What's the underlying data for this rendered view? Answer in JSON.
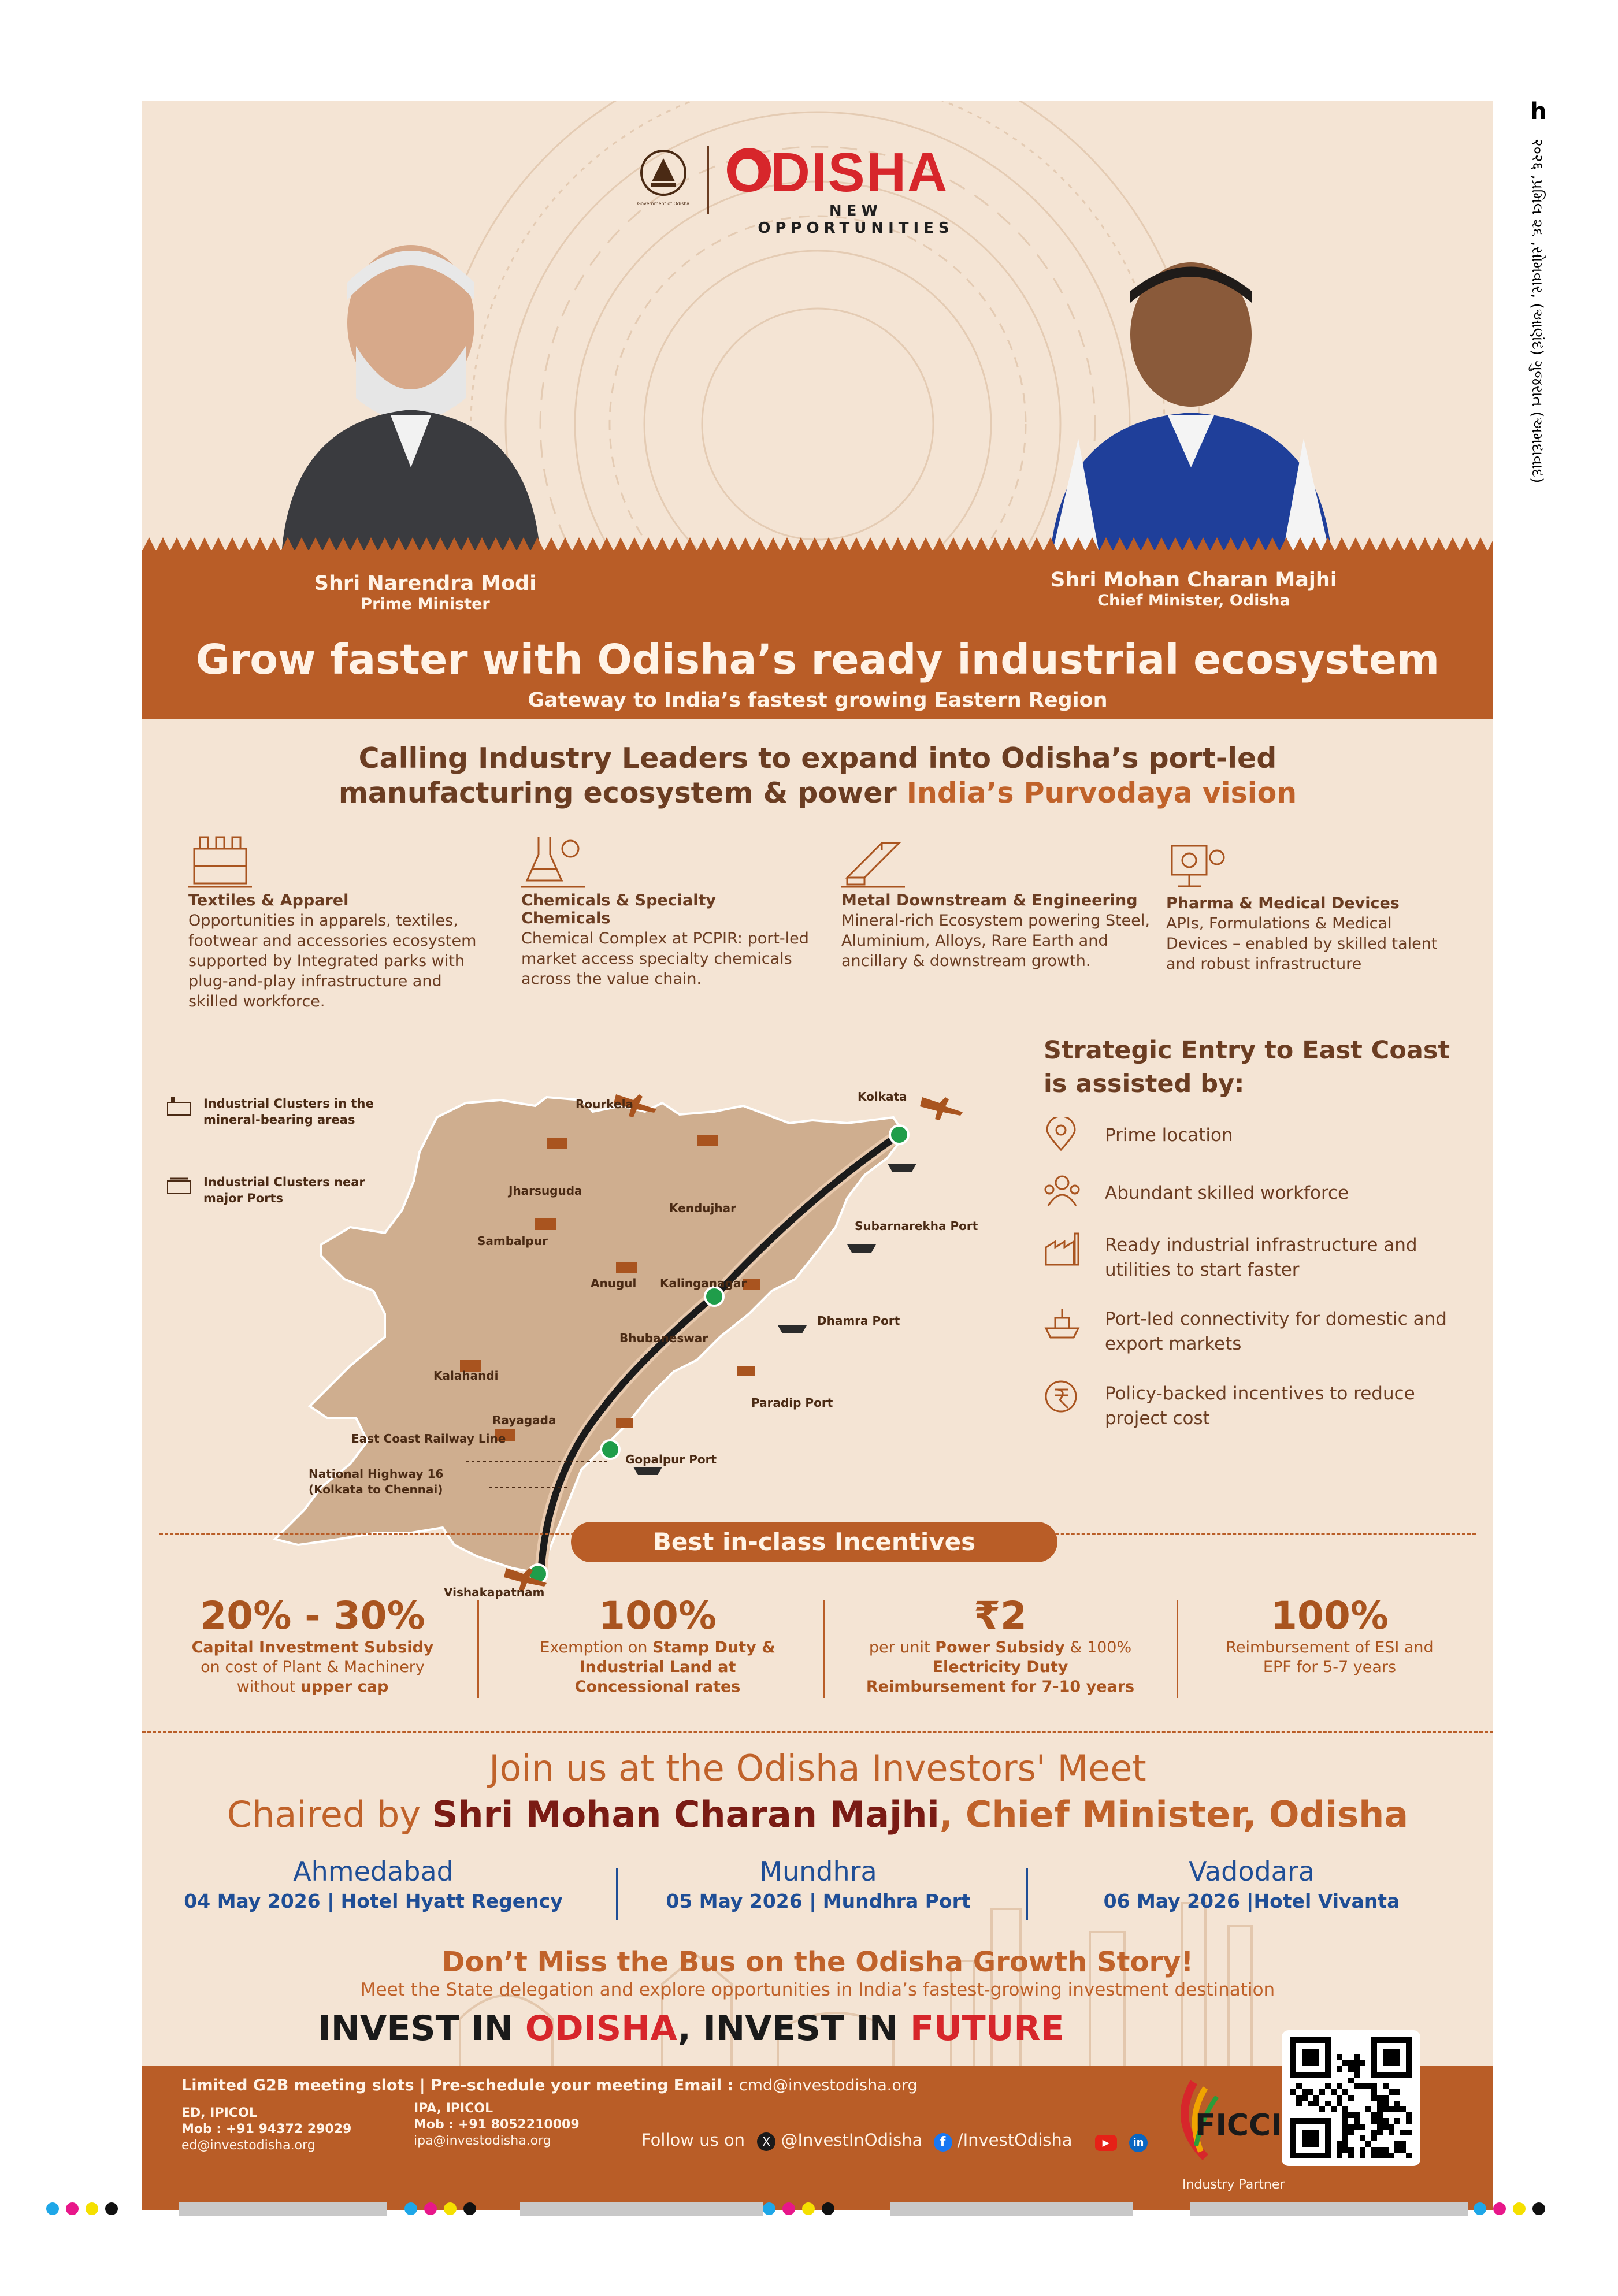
{
  "side_strip": "२०२६ ,પ્રમિલ ૨૬ ,સોમવાર, (આણંદ) ગુજરાત (અમદાવાદ)",
  "side_page": "h",
  "header": {
    "emblem_caption": "Government of Odisha",
    "brand": "ODISHA",
    "brand_tagline": "NEW OPPORTUNITIES"
  },
  "leaders": [
    {
      "name": "Shri Narendra Modi",
      "title": "Prime Minister"
    },
    {
      "name": "Shri Mohan Charan Majhi",
      "title": "Chief Minister, Odisha"
    }
  ],
  "headline": "Grow faster with Odisha’s ready industrial ecosystem",
  "subheadline": "Gateway to India’s fastest growing Eastern Region",
  "call_line1": "Calling Industry Leaders to expand into Odisha’s port-led",
  "call_line2": "manufacturing ecosystem & power ",
  "call_highlight": "India’s Purvodaya vision",
  "sectors": [
    {
      "icon": "textile-factory-icon",
      "title": "Textiles & Apparel",
      "text": "Opportunities in apparels, textiles, footwear and accessories ecosystem supported by Integrated  parks with plug-and-play infrastructure and skilled workforce."
    },
    {
      "icon": "chemical-flask-icon",
      "title": "Chemicals & Specialty Chemicals",
      "text": "Chemical Complex at PCPIR: port-led market access specialty chemicals across the value chain."
    },
    {
      "icon": "metal-beam-icon",
      "title": "Metal Downstream & Engineering",
      "text": "Mineral-rich Ecosystem powering Steel, Aluminium, Alloys, Rare Earth and ancillary & downstream growth."
    },
    {
      "icon": "pharma-lab-icon",
      "title": "Pharma & Medical Devices",
      "text": "APIs, Formulations & Medical Devices – enabled by skilled talent and robust infrastructure"
    }
  ],
  "map": {
    "legend": [
      "Industrial Clusters in the mineral-bearing areas",
      "Industrial Clusters near major Ports"
    ],
    "places": [
      "Rourkela",
      "Kolkata",
      "Jharsuguda",
      "Kendujhar",
      "Sambalpur",
      "Subarnarekha Port",
      "Anugul",
      "Kalinganagar",
      "Dhamra Port",
      "Bhubaneswar",
      "Kalahandi",
      "Paradip Port",
      "Rayagada",
      "East Coast Railway Line",
      "Gopalpur Port",
      "National Highway 16 (Kolkata to Chennai)",
      "Vishakapatnam"
    ]
  },
  "strategic": {
    "title_line1": "Strategic Entry to East Coast",
    "title_line2": "is assisted by:",
    "items": [
      {
        "icon": "location-pin-icon",
        "text": "Prime location"
      },
      {
        "icon": "workforce-icon",
        "text": "Abundant skilled workforce"
      },
      {
        "icon": "factory-icon",
        "text": "Ready industrial infrastructure and utilities to start faster"
      },
      {
        "icon": "ship-icon",
        "text": "Port-led connectivity for domestic and export markets"
      },
      {
        "icon": "rupee-coin-icon",
        "text": "Policy-backed incentives to reduce project cost"
      }
    ]
  },
  "incentives_title": "Best in-class Incentives",
  "incentives": [
    {
      "value": "20% - 30%",
      "l1": "Capital Investment Subsidy",
      "l2": "on cost of Plant & Machinery",
      "l3a": "without ",
      "l3b": "upper cap"
    },
    {
      "value": "100%",
      "l1a": "Exemption on  ",
      "l1b": "Stamp Duty &",
      "l2": "Industrial Land at",
      "l3": "Concessional rates"
    },
    {
      "value": "₹2",
      "l1a": "per unit ",
      "l1b": "Power Subsidy",
      "l1c": " & 100%",
      "l2": "Electricity Duty",
      "l3": "Reimbursement for 7-10 years"
    },
    {
      "value": "100%",
      "l1": "Reimbursement of ESI and",
      "l2": "EPF for 5-7 years"
    }
  ],
  "meet": {
    "line1": "Join us at the Odisha Investors' Meet",
    "chaired_prefix": "Chaired by ",
    "chaired_name": "Shri Mohan Charan Majhi",
    "chaired_suffix": ", Chief Minister, Odisha",
    "cities": [
      {
        "name": "Ahmedabad",
        "detail": "04 May 2026 | Hotel Hyatt Regency"
      },
      {
        "name": "Mundhra",
        "detail": "05 May 2026 | Mundhra Port"
      },
      {
        "name": "Vadodara",
        "detail": "06 May 2026 |Hotel Vivanta"
      }
    ]
  },
  "bus_line": "Don’t Miss the Bus on the Odisha Growth Story!",
  "meet_line": "Meet  the State delegation and explore opportunities in India’s fastest-growing investment destination",
  "invest": {
    "p1": "INVEST IN ",
    "p2": "ODISHA",
    "p3": ", INVEST IN ",
    "p4": "FUTURE"
  },
  "footer": {
    "slots_text": "Limited G2B meeting slots | Pre-schedule your meeting Email : ",
    "email": "cmd@investodisha.org",
    "contacts": [
      {
        "title": "ED, IPICOL",
        "mob": "Mob : +91 94372 29029",
        "email": "ed@investodisha.org"
      },
      {
        "title": "IPA, IPICOL",
        "mob": "Mob : +91 8052210009",
        "email": "ipa@investodisha.org"
      }
    ],
    "follow": "Follow us on",
    "x_handle": "@InvestInOdisha",
    "fb_handle": "/InvestOdisha",
    "partner_name": "FICCI",
    "partner_label": "Industry Partner"
  },
  "colors": {
    "accent": "#b95d27",
    "cream": "#f4e4d4",
    "blue": "#1f4e96",
    "red": "#d7262b",
    "dark_red": "#7a1b14"
  }
}
